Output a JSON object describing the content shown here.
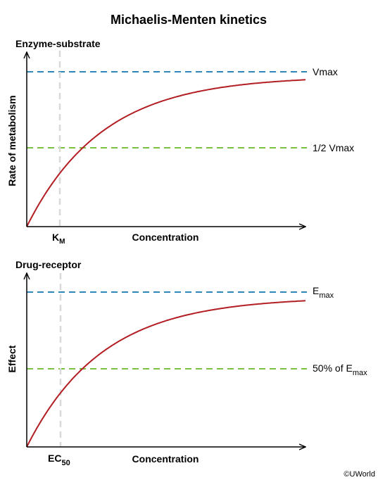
{
  "title": "Michaelis-Menten kinetics",
  "colors": {
    "curve": "#b21e23",
    "max_line": "#2f86b8",
    "half_line": "#7ac142",
    "marker_line": "#d9d9d9",
    "axis": "#000000"
  },
  "panels": [
    {
      "label": "Enzyme-substrate",
      "y_axis_label": "Rate of metabolism",
      "x_axis_label": "Concentration",
      "max_label": "Vmax",
      "half_label": "1/2 Vmax",
      "marker_label_main": "K",
      "marker_label_sub": "M"
    },
    {
      "label": "Drug-receptor",
      "y_axis_label": "Effect",
      "x_axis_label": "Concentration",
      "max_label_main": "E",
      "max_label_sub": "max",
      "half_label_main": "50% of E",
      "half_label_sub": "max",
      "marker_label_main": "EC",
      "marker_label_sub": "50"
    }
  ],
  "copyright": "©UWorld"
}
